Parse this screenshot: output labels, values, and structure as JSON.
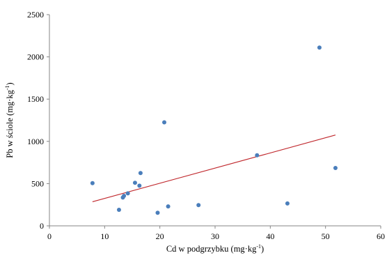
{
  "chart_data": {
    "type": "scatter",
    "title": "",
    "xlabel": "Cd w podgrzybku (mg·kg",
    "xlabel_sup": "-1",
    "xlabel_end": ")",
    "ylabel": "Pb w ściole (mg·kg",
    "ylabel_sup": "-1",
    "ylabel_end": ")",
    "xlim": [
      0,
      60
    ],
    "ylim": [
      0,
      2500
    ],
    "x_ticks": [
      "0",
      "10",
      "20",
      "30",
      "40",
      "50",
      "60"
    ],
    "y_ticks": [
      "0",
      "500",
      "1000",
      "1500",
      "2000",
      "2500"
    ],
    "grid": false,
    "legend": "none",
    "point_color": "#4a7ebb",
    "trendline_color": "#c0282d",
    "points": [
      {
        "x": 7.8,
        "y": 505
      },
      {
        "x": 12.6,
        "y": 190
      },
      {
        "x": 13.3,
        "y": 335
      },
      {
        "x": 13.5,
        "y": 355
      },
      {
        "x": 14.2,
        "y": 385
      },
      {
        "x": 15.5,
        "y": 510
      },
      {
        "x": 16.3,
        "y": 475
      },
      {
        "x": 16.5,
        "y": 625
      },
      {
        "x": 19.6,
        "y": 155
      },
      {
        "x": 20.8,
        "y": 1225
      },
      {
        "x": 21.5,
        "y": 230
      },
      {
        "x": 27.0,
        "y": 245
      },
      {
        "x": 37.6,
        "y": 835
      },
      {
        "x": 43.1,
        "y": 265
      },
      {
        "x": 48.9,
        "y": 2110
      },
      {
        "x": 51.8,
        "y": 685
      }
    ],
    "trendline": {
      "x": [
        7.8,
        51.8
      ],
      "y": [
        285,
        1075
      ]
    }
  }
}
